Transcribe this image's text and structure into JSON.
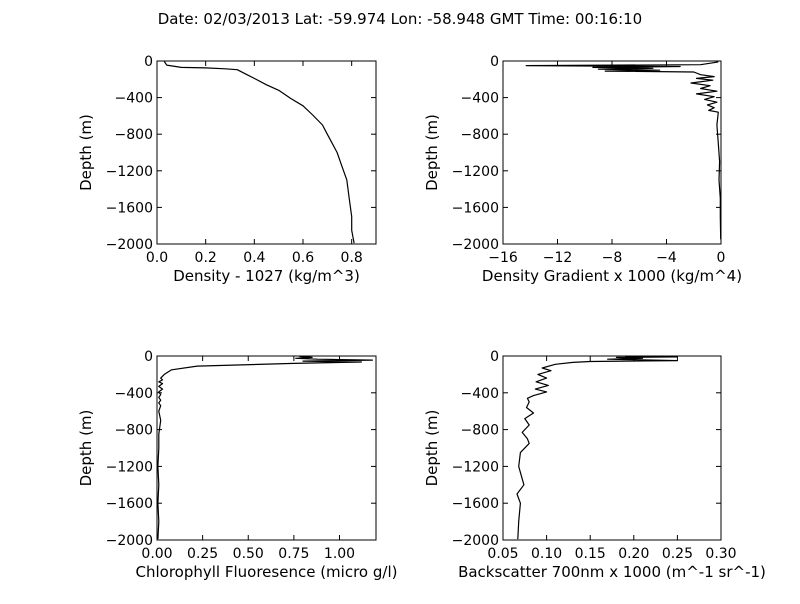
{
  "figure": {
    "title": "Date: 02/03/2013  Lat:  -59.974 Lon:  -58.948  GMT Time: 00:16:10"
  },
  "chart_data": [
    {
      "type": "line",
      "xlabel": "Density - 1027 (kg/m^3)",
      "ylabel": "Depth (m)",
      "xlim": [
        0.0,
        0.9
      ],
      "ylim": [
        -2000,
        0
      ],
      "xticks": [
        0.0,
        0.2,
        0.4,
        0.6,
        0.8
      ],
      "xtick_labels": [
        "0.0",
        "0.2",
        "0.4",
        "0.6",
        "0.8"
      ],
      "yticks": [
        0,
        -400,
        -800,
        -1200,
        -1600,
        -2000
      ],
      "ytick_labels": [
        "0",
        "−400",
        "−800",
        "−1200",
        "−1600",
        "−2000"
      ],
      "grid": false,
      "series": [
        {
          "x": [
            0.03,
            0.04,
            0.1,
            0.2,
            0.28,
            0.33,
            0.37,
            0.4,
            0.45,
            0.5,
            0.55,
            0.6,
            0.64,
            0.68,
            0.7,
            0.72,
            0.74,
            0.76,
            0.78,
            0.79,
            0.8,
            0.8,
            0.81
          ],
          "y": [
            -5,
            -45,
            -70,
            -75,
            -85,
            -95,
            -150,
            -190,
            -260,
            -320,
            -410,
            -490,
            -590,
            -700,
            -800,
            -900,
            -1000,
            -1150,
            -1300,
            -1500,
            -1700,
            -1850,
            -1990
          ]
        }
      ]
    },
    {
      "type": "line",
      "xlabel": "Density Gradient x 1000 (kg/m^4)",
      "ylabel": "Depth (m)",
      "xlim": [
        -16,
        0
      ],
      "ylim": [
        -2000,
        0
      ],
      "xticks": [
        -16,
        -12,
        -8,
        -4,
        0
      ],
      "xtick_labels": [
        "−16",
        "−12",
        "−8",
        "−4",
        "0"
      ],
      "yticks": [
        0,
        -400,
        -800,
        -1200,
        -1600,
        -2000
      ],
      "ytick_labels": [
        "0",
        "−400",
        "−800",
        "−1200",
        "−1600",
        "−2000"
      ],
      "grid": false,
      "series": [
        {
          "x": [
            -0.2,
            -0.6,
            -1.5,
            -14.3,
            -3.0,
            -9.4,
            -5.0,
            -9.0,
            -4.5,
            -8.5,
            -2.0,
            -1.5,
            -0.5,
            -1.8,
            -0.6,
            -2.2,
            -0.8,
            -1.5,
            -0.3,
            -1.8,
            -0.5,
            -1.2,
            -0.3,
            -1.0,
            -0.5,
            -0.9,
            -0.2,
            -0.3,
            -0.2,
            -0.1,
            -0.15,
            -0.05,
            -0.05,
            -0.02
          ],
          "y": [
            -10,
            -20,
            -40,
            -50,
            -60,
            -70,
            -80,
            -90,
            -100,
            -110,
            -120,
            -150,
            -170,
            -190,
            -210,
            -240,
            -270,
            -300,
            -330,
            -360,
            -390,
            -420,
            -450,
            -480,
            -510,
            -540,
            -560,
            -700,
            -900,
            -1100,
            -1300,
            -1500,
            -1700,
            -1950
          ]
        }
      ]
    },
    {
      "type": "line",
      "xlabel": "Chlorophyll Fluoresence (micro g/l)",
      "ylabel": "Depth (m)",
      "xlim": [
        0.0,
        1.2
      ],
      "ylim": [
        -2000,
        0
      ],
      "xticks": [
        0.0,
        0.25,
        0.5,
        0.75,
        1.0
      ],
      "xtick_labels": [
        "0.00",
        "0.25",
        "0.50",
        "0.75",
        "1.00"
      ],
      "yticks": [
        0,
        -400,
        -800,
        -1200,
        -1600,
        -2000
      ],
      "ytick_labels": [
        "0",
        "−400",
        "−800",
        "−1200",
        "−1600",
        "−2000"
      ],
      "grid": false,
      "series": [
        {
          "x": [
            0.78,
            0.85,
            0.76,
            0.88,
            1.18,
            0.8,
            1.12,
            0.75,
            0.22,
            0.08,
            0.04,
            0.02,
            0.03,
            0.01,
            0.03,
            0.01,
            0.03,
            0.01,
            0.02,
            0.01,
            0.02,
            0.01,
            0.02,
            0.01,
            0.02,
            0.01,
            0.01,
            0.005,
            0.01,
            0.005,
            0.01,
            0.005
          ],
          "y": [
            -5,
            -15,
            -25,
            -35,
            -45,
            -55,
            -65,
            -80,
            -110,
            -150,
            -200,
            -240,
            -260,
            -280,
            -300,
            -330,
            -360,
            -390,
            -420,
            -450,
            -480,
            -510,
            -540,
            -600,
            -700,
            -850,
            -1000,
            -1200,
            -1400,
            -1600,
            -1800,
            -1990
          ]
        }
      ]
    },
    {
      "type": "line",
      "xlabel": "Backscatter 700nm x 1000 (m^-1 sr^-1)",
      "ylabel": "Depth (m)",
      "xlim": [
        0.05,
        0.3
      ],
      "ylim": [
        -2000,
        0
      ],
      "xticks": [
        0.05,
        0.1,
        0.15,
        0.2,
        0.25,
        0.3
      ],
      "xtick_labels": [
        "0.05",
        "0.10",
        "0.15",
        "0.20",
        "0.25",
        "0.30"
      ],
      "yticks": [
        0,
        -400,
        -800,
        -1200,
        -1600,
        -2000
      ],
      "ytick_labels": [
        "0",
        "−400",
        "−800",
        "−1200",
        "−1600",
        "−2000"
      ],
      "grid": false,
      "series": [
        {
          "x": [
            0.19,
            0.25,
            0.18,
            0.21,
            0.17,
            0.25,
            0.15,
            0.13,
            0.11,
            0.095,
            0.105,
            0.09,
            0.1,
            0.088,
            0.102,
            0.087,
            0.1,
            0.085,
            0.078,
            0.08,
            0.077,
            0.085,
            0.075,
            0.08,
            0.072,
            0.078,
            0.08,
            0.07,
            0.068,
            0.074,
            0.066,
            0.07,
            0.068,
            0.067
          ],
          "y": [
            -5,
            -10,
            -15,
            -25,
            -35,
            -50,
            -60,
            -70,
            -90,
            -130,
            -160,
            -200,
            -240,
            -280,
            -320,
            -360,
            -390,
            -430,
            -460,
            -500,
            -560,
            -620,
            -680,
            -750,
            -830,
            -900,
            -950,
            -1050,
            -1200,
            -1400,
            -1500,
            -1600,
            -1800,
            -1990
          ]
        }
      ]
    }
  ]
}
